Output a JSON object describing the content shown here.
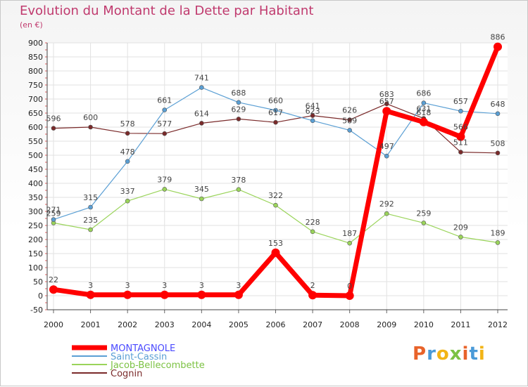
{
  "header": {
    "title": "Evolution du Montant de la Dette par Habitant",
    "unit": "(en €)"
  },
  "logo": {
    "text": "Proxiti",
    "colors": [
      "#e8632a",
      "#4a9ad8",
      "#f2b416",
      "#7cc243",
      "#e8632a",
      "#4a9ad8",
      "#f2b416"
    ]
  },
  "chart_data": {
    "type": "line",
    "title": "Evolution du Montant de la Dette par Habitant",
    "subtitle": "(en €)",
    "xlabel": "",
    "ylabel": "",
    "x": [
      "2000",
      "2001",
      "2002",
      "2003",
      "2004",
      "2005",
      "2006",
      "2007",
      "2008",
      "2009",
      "2010",
      "2011",
      "2012"
    ],
    "ylim": [
      -50,
      900
    ],
    "yticks": [
      -50,
      0,
      50,
      100,
      150,
      200,
      250,
      300,
      350,
      400,
      450,
      500,
      550,
      600,
      650,
      700,
      750,
      800,
      850,
      900
    ],
    "grid": true,
    "legend_position": "bottom-left",
    "series": [
      {
        "name": "MONTAGNOLE",
        "color": "#ff0000",
        "labelcolor": "#4a4aff",
        "width": 7,
        "values": [
          22,
          3,
          3,
          3,
          3,
          3,
          153,
          2,
          0,
          657,
          618,
          566,
          886
        ],
        "labels": [
          "22",
          "3",
          "3",
          "3",
          "3",
          "3",
          "153",
          "2",
          "0",
          "657",
          "618",
          "566",
          "886"
        ]
      },
      {
        "name": "Saint-Cassin",
        "color": "#5a9fd4",
        "labelcolor": "#5a9fd4",
        "width": 1.2,
        "values": [
          271,
          315,
          478,
          661,
          741,
          688,
          660,
          623,
          589,
          497,
          686,
          657,
          648
        ],
        "labels": [
          "271",
          "315",
          "478",
          "661",
          "741",
          "688",
          "660",
          "623",
          "589",
          "497",
          "686",
          "657",
          "648"
        ]
      },
      {
        "name": "Jacob-Bellecombette",
        "color": "#9ad45a",
        "labelcolor": "#7cc243",
        "width": 1.2,
        "values": [
          259,
          235,
          337,
          379,
          345,
          378,
          322,
          228,
          187,
          292,
          259,
          209,
          189
        ],
        "labels": [
          "259",
          "235",
          "337",
          "379",
          "345",
          "378",
          "322",
          "228",
          "187",
          "292",
          "259",
          "209",
          "189"
        ]
      },
      {
        "name": "Cognin",
        "color": "#7a2a2a",
        "labelcolor": "#7a2a2a",
        "width": 1.2,
        "values": [
          596,
          600,
          578,
          577,
          614,
          629,
          617,
          641,
          626,
          683,
          631,
          511,
          508
        ],
        "labels": [
          "596",
          "600",
          "578",
          "577",
          "614",
          "629",
          "617",
          "641",
          "626",
          "683",
          "631",
          "511",
          "508"
        ]
      }
    ]
  }
}
